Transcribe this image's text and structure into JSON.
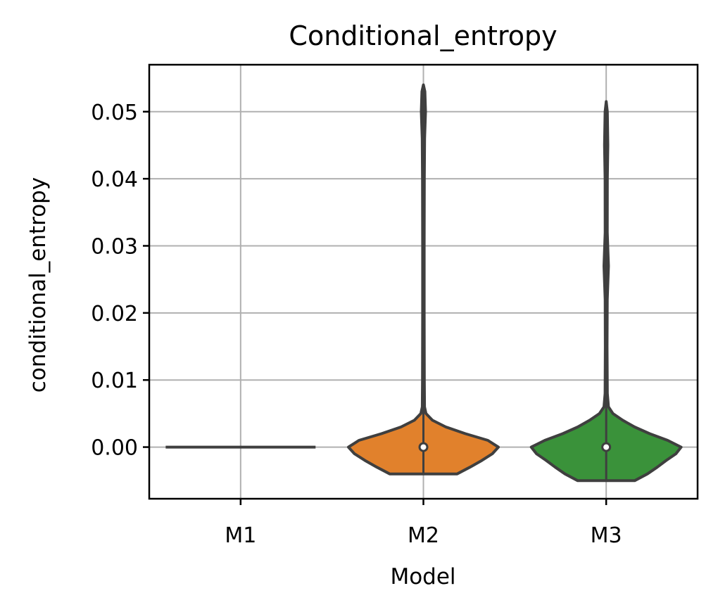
{
  "chart_data": {
    "type": "violin",
    "title": "Conditional_entropy",
    "xlabel": "Model",
    "ylabel": "conditional_entropy",
    "categories": [
      "M1",
      "M2",
      "M3"
    ],
    "ylim": [
      -0.0077,
      0.057
    ],
    "yticks": [
      0.0,
      0.01,
      0.02,
      0.03,
      0.04,
      0.05
    ],
    "ytick_labels": [
      "0.00",
      "0.01",
      "0.02",
      "0.03",
      "0.04",
      "0.05"
    ],
    "grid": true,
    "legend": "none",
    "series": [
      {
        "category": "M1",
        "color": "#4c72b0",
        "min": 0.0,
        "max": 0.0,
        "median": 0.0,
        "density": [
          {
            "y": 0.0,
            "w": 1.0
          }
        ]
      },
      {
        "category": "M2",
        "color": "#e1812c",
        "min": -0.004,
        "max": 0.054,
        "median": 0.0,
        "density": [
          {
            "y": -0.004,
            "w": 0.45
          },
          {
            "y": -0.003,
            "w": 0.62
          },
          {
            "y": -0.002,
            "w": 0.78
          },
          {
            "y": -0.001,
            "w": 0.92
          },
          {
            "y": 0.0,
            "w": 1.0
          },
          {
            "y": 0.001,
            "w": 0.86
          },
          {
            "y": 0.002,
            "w": 0.56
          },
          {
            "y": 0.003,
            "w": 0.3
          },
          {
            "y": 0.004,
            "w": 0.12
          },
          {
            "y": 0.005,
            "w": 0.035
          },
          {
            "y": 0.006,
            "w": 0.015
          },
          {
            "y": 0.01,
            "w": 0.012
          },
          {
            "y": 0.02,
            "w": 0.01
          },
          {
            "y": 0.03,
            "w": 0.01
          },
          {
            "y": 0.04,
            "w": 0.012
          },
          {
            "y": 0.046,
            "w": 0.016
          },
          {
            "y": 0.05,
            "w": 0.028
          },
          {
            "y": 0.053,
            "w": 0.02
          },
          {
            "y": 0.054,
            "w": 0.0
          }
        ]
      },
      {
        "category": "M3",
        "color": "#3a923a",
        "min": -0.005,
        "max": 0.0515,
        "median": 0.0,
        "density": [
          {
            "y": -0.005,
            "w": 0.38
          },
          {
            "y": -0.004,
            "w": 0.55
          },
          {
            "y": -0.003,
            "w": 0.68
          },
          {
            "y": -0.002,
            "w": 0.8
          },
          {
            "y": -0.001,
            "w": 0.93
          },
          {
            "y": 0.0,
            "w": 1.0
          },
          {
            "y": 0.001,
            "w": 0.82
          },
          {
            "y": 0.002,
            "w": 0.58
          },
          {
            "y": 0.003,
            "w": 0.38
          },
          {
            "y": 0.004,
            "w": 0.22
          },
          {
            "y": 0.005,
            "w": 0.09
          },
          {
            "y": 0.006,
            "w": 0.03
          },
          {
            "y": 0.008,
            "w": 0.015
          },
          {
            "y": 0.015,
            "w": 0.012
          },
          {
            "y": 0.022,
            "w": 0.014
          },
          {
            "y": 0.027,
            "w": 0.03
          },
          {
            "y": 0.032,
            "w": 0.014
          },
          {
            "y": 0.04,
            "w": 0.015
          },
          {
            "y": 0.045,
            "w": 0.022
          },
          {
            "y": 0.05,
            "w": 0.015
          },
          {
            "y": 0.0515,
            "w": 0.0
          }
        ]
      }
    ]
  }
}
